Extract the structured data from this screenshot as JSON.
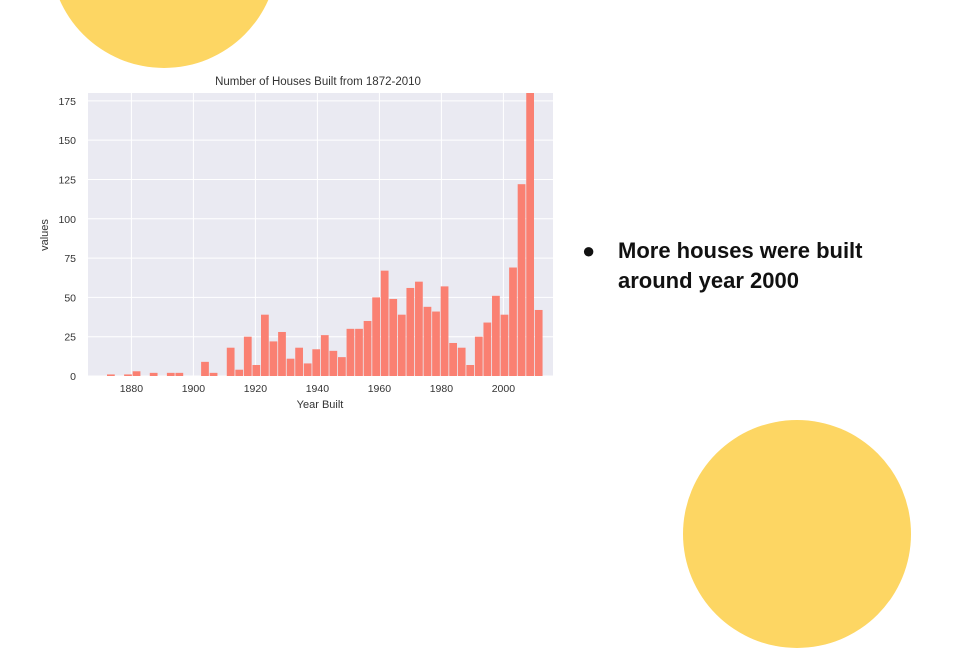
{
  "theme": {
    "accent": "#fdd663",
    "bar": "#fa8072",
    "plot_bg": "#eaeaf2",
    "grid": "#ffffff",
    "text": "#333333"
  },
  "bullets": [
    {
      "text": "More houses were built around year 2000"
    }
  ],
  "chart_data": {
    "type": "bar",
    "title": "Number of Houses Built from 1872-2010",
    "xlabel": "Year Built",
    "ylabel": "values",
    "xlim": [
      1866,
      2016
    ],
    "ylim": [
      0,
      180
    ],
    "xticks": [
      1880,
      1900,
      1920,
      1940,
      1960,
      1980,
      2000
    ],
    "yticks": [
      0,
      25,
      50,
      75,
      100,
      125,
      150,
      175
    ],
    "grid": true,
    "bin_width": 2.76,
    "bin_start": 1872,
    "values": [
      1,
      0,
      1,
      3,
      0,
      2,
      0,
      2,
      2,
      0,
      0,
      9,
      2,
      0,
      18,
      4,
      25,
      7,
      39,
      22,
      28,
      11,
      18,
      8,
      17,
      26,
      16,
      12,
      30,
      30,
      35,
      50,
      67,
      49,
      39,
      56,
      60,
      44,
      41,
      57,
      21,
      18,
      7,
      25,
      34,
      51,
      39,
      69,
      122,
      180,
      42
    ]
  }
}
